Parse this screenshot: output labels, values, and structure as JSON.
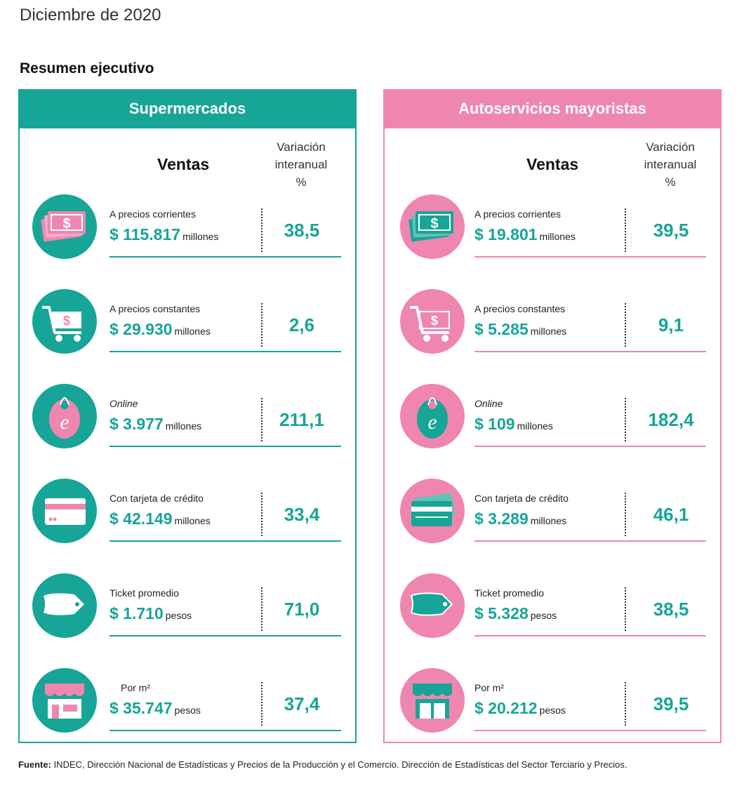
{
  "header": {
    "date": "Diciembre de 2020",
    "subtitle": "Resumen ejecutivo"
  },
  "colors": {
    "teal": "#16a597",
    "pink": "#ef86b0"
  },
  "panels": [
    {
      "title": "Supermercados",
      "ventas_label": "Ventas",
      "variation_label": [
        "Variación",
        "interanual",
        "%"
      ],
      "rows": [
        {
          "icon": "banknotes-icon",
          "label": "A precios corrientes",
          "amount": "$ 115.817",
          "unit": "millones",
          "variation": "38,5"
        },
        {
          "icon": "shopping-cart-icon",
          "label": "A precios constantes",
          "amount": "$ 29.930",
          "unit": "millones",
          "variation": "2,6"
        },
        {
          "icon": "online-tag-icon",
          "label": "Online",
          "amount": "$ 3.977",
          "unit": "millones",
          "variation": "211,1"
        },
        {
          "icon": "credit-card-icon",
          "label": "Con tarjeta de crédito",
          "amount": "$ 42.149",
          "unit": "millones",
          "variation": "33,4"
        },
        {
          "icon": "price-tag-icon",
          "label": "Ticket promedio",
          "amount": "$ 1.710",
          "unit": "pesos",
          "variation": "71,0"
        },
        {
          "icon": "storefront-icon",
          "label": "Por m²",
          "amount": "$ 35.747",
          "unit": "pesos",
          "variation": "37,4"
        }
      ]
    },
    {
      "title": "Autoservicios mayoristas",
      "ventas_label": "Ventas",
      "variation_label": [
        "Variación",
        "interanual",
        "%"
      ],
      "rows": [
        {
          "icon": "banknotes-icon",
          "label": "A precios corrientes",
          "amount": "$ 19.801",
          "unit": "millones",
          "variation": "39,5"
        },
        {
          "icon": "shopping-cart-icon",
          "label": "A precios constantes",
          "amount": "$ 5.285",
          "unit": "millones",
          "variation": "9,1"
        },
        {
          "icon": "online-tag-icon",
          "label": "Online",
          "amount": "$ 109",
          "unit": "millones",
          "variation": "182,4"
        },
        {
          "icon": "credit-card-icon",
          "label": "Con tarjeta de crédito",
          "amount": "$ 3.289",
          "unit": "millones",
          "variation": "46,1"
        },
        {
          "icon": "price-tag-icon",
          "label": "Ticket promedio",
          "amount": "$ 5.328",
          "unit": "pesos",
          "variation": "38,5"
        },
        {
          "icon": "storefront-icon",
          "label": "Por m²",
          "amount": "$ 20.212",
          "unit": "pesos",
          "variation": "39,5"
        }
      ]
    }
  ],
  "footer": {
    "label": "Fuente:",
    "text": " INDEC, Dirección Nacional de Estadísticas y Precios de la Producción y el Comercio. Dirección de Estadísticas del Sector Terciario y Precios."
  }
}
